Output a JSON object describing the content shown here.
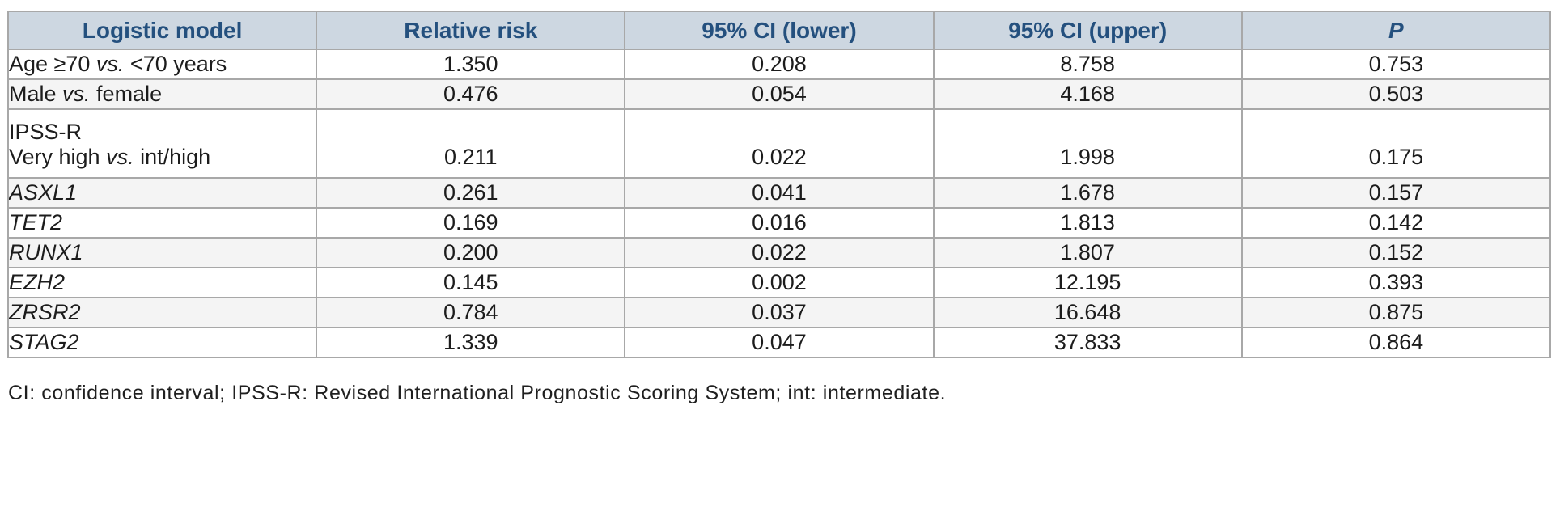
{
  "table": {
    "columns": [
      {
        "label": "Logistic model"
      },
      {
        "label": "Relative risk"
      },
      {
        "label": "95% CI (lower)"
      },
      {
        "label": "95% CI (upper)"
      },
      {
        "label": "P"
      }
    ],
    "rows": [
      {
        "label_lines": [
          [
            {
              "text": "Age ≥70 "
            },
            {
              "text": "vs.",
              "italic": true
            },
            {
              "text": " <70 years"
            }
          ]
        ],
        "values": [
          "1.350",
          "0.208",
          "8.758",
          "0.753"
        ]
      },
      {
        "label_lines": [
          [
            {
              "text": "Male "
            },
            {
              "text": "vs.",
              "italic": true
            },
            {
              "text": " female"
            }
          ]
        ],
        "values": [
          "0.476",
          "0.054",
          "4.168",
          "0.503"
        ]
      },
      {
        "label_lines": [
          [
            {
              "text": "IPSS-R"
            }
          ],
          [
            {
              "text": "Very high "
            },
            {
              "text": "vs.",
              "italic": true
            },
            {
              "text": " int/high"
            }
          ]
        ],
        "values": [
          "0.211",
          "0.022",
          "1.998",
          "0.175"
        ]
      },
      {
        "label_lines": [
          [
            {
              "text": "ASXL1",
              "italic": true
            }
          ]
        ],
        "values": [
          "0.261",
          "0.041",
          "1.678",
          "0.157"
        ]
      },
      {
        "label_lines": [
          [
            {
              "text": "TET2",
              "italic": true
            }
          ]
        ],
        "values": [
          "0.169",
          "0.016",
          "1.813",
          "0.142"
        ]
      },
      {
        "label_lines": [
          [
            {
              "text": "RUNX1",
              "italic": true
            }
          ]
        ],
        "values": [
          "0.200",
          "0.022",
          "1.807",
          "0.152"
        ]
      },
      {
        "label_lines": [
          [
            {
              "text": "EZH2",
              "italic": true
            }
          ]
        ],
        "values": [
          "0.145",
          "0.002",
          "12.195",
          "0.393"
        ]
      },
      {
        "label_lines": [
          [
            {
              "text": "ZRSR2",
              "italic": true
            }
          ]
        ],
        "values": [
          "0.784",
          "0.037",
          "16.648",
          "0.875"
        ]
      },
      {
        "label_lines": [
          [
            {
              "text": "STAG2",
              "italic": true
            }
          ]
        ],
        "values": [
          "1.339",
          "0.047",
          "37.833",
          "0.864"
        ]
      }
    ]
  },
  "footnote": "CI: confidence interval; IPSS-R: Revised International Prognostic Scoring System; int: intermediate.",
  "colors": {
    "header_bg": "#cdd7e1",
    "header_text": "#24507e",
    "alt_row_bg": "#f4f4f4",
    "border": "#a8a8a8",
    "body_text": "#1c1c1c"
  }
}
